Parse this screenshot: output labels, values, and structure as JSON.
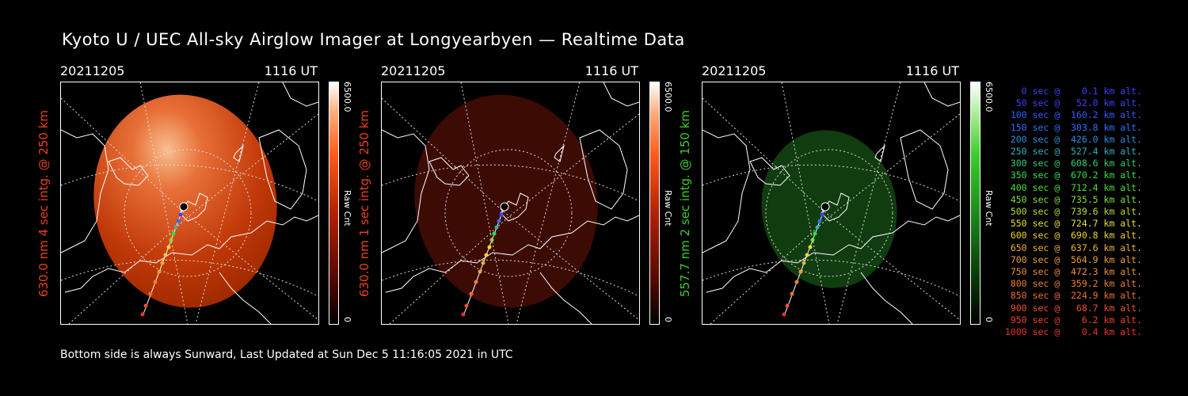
{
  "title": "Kyoto U / UEC All-sky Airglow Imager at Longyearbyen — Realtime Data",
  "footer": "Bottom side is always Sunward, Last Updated at Sun Dec  5 11:16:05 2021 in UTC",
  "colorbar": {
    "max": "6500.0",
    "min": "0",
    "unit": "Raw Cnt"
  },
  "panels": [
    {
      "date": "20211205",
      "time": "1116 UT",
      "label": "630.0 nm 4 sec intg. @ 250 km",
      "label_color": "#e8401c",
      "bar_color": "#ff5a1a"
    },
    {
      "date": "20211205",
      "time": "1116 UT",
      "label": "630.0 nm 1 sec intg. @ 250 km",
      "label_color": "#e8401c",
      "bar_color": "#ff5a1a"
    },
    {
      "date": "20211205",
      "time": "1116 UT",
      "label": "557.7 nm 2 sec intg. @ 150 km",
      "label_color": "#3ccd2a",
      "bar_color": "#3ccd2a"
    }
  ],
  "legend": [
    {
      "text": "0 sec @    0.1 km alt.",
      "color": "#3f3fff"
    },
    {
      "text": "50 sec @   52.0 km alt.",
      "color": "#3f3fff"
    },
    {
      "text": "100 sec @  160.2 km alt.",
      "color": "#2f5fff"
    },
    {
      "text": "150 sec @  303.8 km alt.",
      "color": "#2f6fff"
    },
    {
      "text": "200 sec @  426.0 km alt.",
      "color": "#2f8fe0"
    },
    {
      "text": "250 sec @  527.4 km alt.",
      "color": "#2fb0c0"
    },
    {
      "text": "300 sec @  608.6 km alt.",
      "color": "#2fd070"
    },
    {
      "text": "350 sec @  670.2 km alt.",
      "color": "#30e040"
    },
    {
      "text": "400 sec @  712.4 km alt.",
      "color": "#4ae030"
    },
    {
      "text": "450 sec @  735.5 km alt.",
      "color": "#80e030"
    },
    {
      "text": "500 sec @  739.6 km alt.",
      "color": "#b8e030"
    },
    {
      "text": "550 sec @  724.7 km alt.",
      "color": "#e8e030"
    },
    {
      "text": "600 sec @  690.8 km alt.",
      "color": "#f0d030"
    },
    {
      "text": "650 sec @  637.6 km alt.",
      "color": "#f0b030"
    },
    {
      "text": "700 sec @  564.9 km alt.",
      "color": "#f0a030"
    },
    {
      "text": "750 sec @  472.3 km alt.",
      "color": "#f09030"
    },
    {
      "text": "800 sec @  359.2 km alt.",
      "color": "#f08030"
    },
    {
      "text": "850 sec @  224.9 km alt.",
      "color": "#f07030"
    },
    {
      "text": "900 sec @   68.7 km alt.",
      "color": "#f05030"
    },
    {
      "text": "950 sec @    6.2 km alt.",
      "color": "#f04030"
    },
    {
      "text": "1000 sec @    0.4 km alt.",
      "color": "#f03030"
    }
  ]
}
